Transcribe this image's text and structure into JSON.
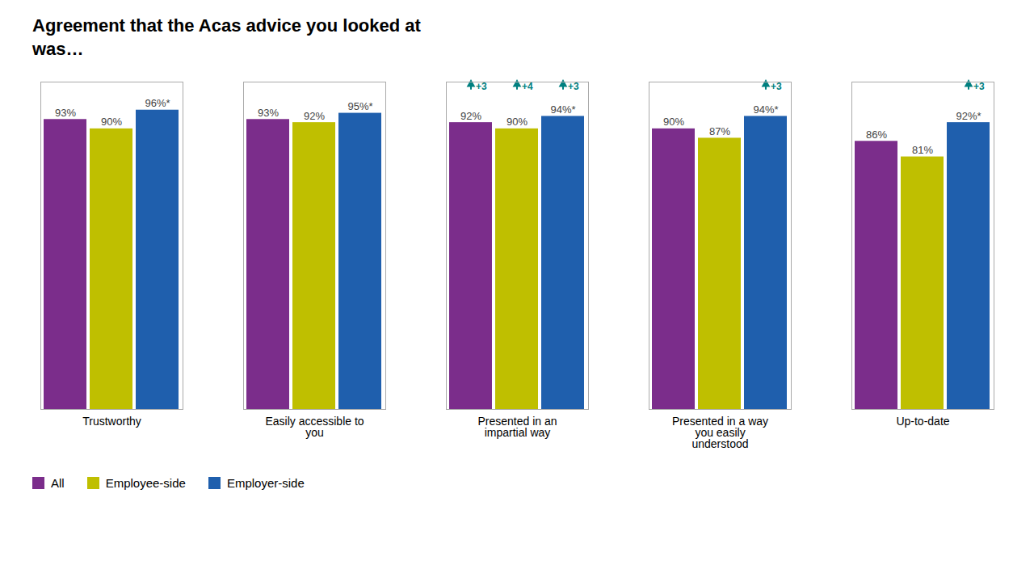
{
  "chart_data": {
    "type": "bar",
    "title": "Agreement that the Acas advice you looked at\nwas…",
    "categories": [
      "Trustworthy",
      "Easily accessible to\nyou",
      "Presented in an\nimpartial way",
      "Presented in a way\nyou easily\nunderstood",
      "Up-to-date"
    ],
    "series": [
      {
        "name": "All",
        "color": "#7B2D8B",
        "values": [
          93,
          93,
          92,
          90,
          86
        ],
        "value_labels": [
          "93%",
          "93%",
          "92%",
          "90%",
          "86%"
        ]
      },
      {
        "name": "Employee-side",
        "color": "#BFBF00",
        "values": [
          90,
          92,
          90,
          87,
          81
        ],
        "value_labels": [
          "90%",
          "92%",
          "90%",
          "87%",
          "81%"
        ]
      },
      {
        "name": "Employer-side",
        "color": "#1F5FAD",
        "values": [
          96,
          95,
          94,
          94,
          92
        ],
        "value_labels": [
          "96%*",
          "95%*",
          "94%*",
          "94%*",
          "92%*"
        ]
      }
    ],
    "ylim": [
      0,
      105
    ],
    "data_labels": true,
    "tick_labels": "x",
    "grid": false,
    "legend": "bottom",
    "annotations": [
      {
        "category": "Presented in an\nimpartial way",
        "series": "All",
        "text": "+3",
        "color": "#008080"
      },
      {
        "category": "Presented in an\nimpartial way",
        "series": "Employee-side",
        "text": "+4",
        "color": "#008080"
      },
      {
        "category": "Presented in an\nimpartial way",
        "series": "Employer-side",
        "text": "+3",
        "color": "#008080"
      },
      {
        "category": "Presented in a way\nyou easily\nunderstood",
        "series": "Employer-side",
        "text": "+3",
        "color": "#008080"
      },
      {
        "category": "Up-to-date",
        "series": "Employer-side",
        "text": "+3",
        "color": "#008080"
      }
    ]
  }
}
